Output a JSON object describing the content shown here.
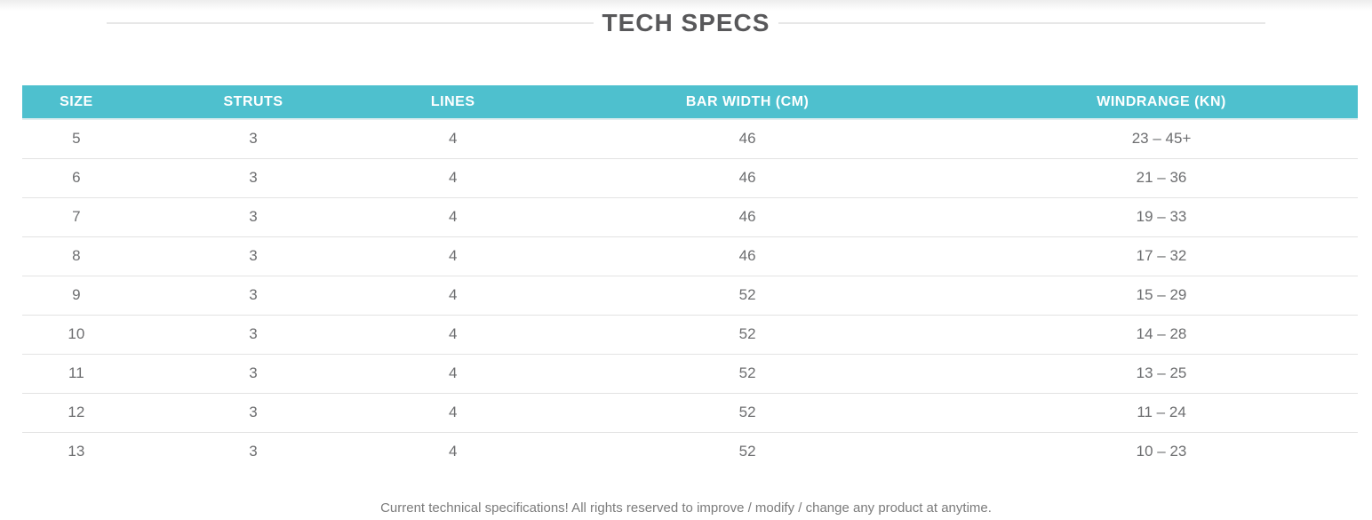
{
  "page": {
    "title": "TECH SPECS",
    "footer_note": "Current technical specifications! All rights reserved to improve / modify / change any product at anytime."
  },
  "colors": {
    "accent_teal": "#4ec0ce",
    "title_text": "#58585a",
    "header_text": "#ffffff",
    "body_text": "#6d6e70",
    "row_divider": "#e3e3e3",
    "footer_text": "#7b7b7b"
  },
  "table": {
    "columns": [
      "SIZE",
      "STRUTS",
      "LINES",
      "BAR WIDTH (CM)",
      "WINDRANGE (KN)"
    ],
    "rows": [
      [
        "5",
        "3",
        "4",
        "46",
        "23 – 45+"
      ],
      [
        "6",
        "3",
        "4",
        "46",
        "21 – 36"
      ],
      [
        "7",
        "3",
        "4",
        "46",
        "19 – 33"
      ],
      [
        "8",
        "3",
        "4",
        "46",
        "17 – 32"
      ],
      [
        "9",
        "3",
        "4",
        "52",
        "15 – 29"
      ],
      [
        "10",
        "3",
        "4",
        "52",
        "14 – 28"
      ],
      [
        "11",
        "3",
        "4",
        "52",
        "13 – 25"
      ],
      [
        "12",
        "3",
        "4",
        "52",
        "11 – 24"
      ],
      [
        "13",
        "3",
        "4",
        "52",
        "10 – 23"
      ]
    ]
  }
}
